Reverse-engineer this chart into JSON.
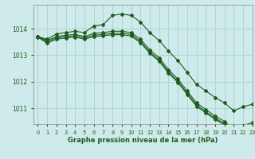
{
  "title": "Graphe pression niveau de la mer (hPa)",
  "background_color": "#ceeaea",
  "grid_color": "#aed4d4",
  "line_color": "#1e5c1e",
  "xlim": [
    -0.5,
    23
  ],
  "ylim": [
    1010.4,
    1014.9
  ],
  "yticks": [
    1011,
    1012,
    1013,
    1014
  ],
  "xticks": [
    0,
    1,
    2,
    3,
    4,
    5,
    6,
    7,
    8,
    9,
    10,
    11,
    12,
    13,
    14,
    15,
    16,
    17,
    18,
    19,
    20,
    21,
    22,
    23
  ],
  "series": [
    [
      1013.7,
      1013.6,
      1013.8,
      1013.85,
      1013.9,
      1013.85,
      1014.1,
      1014.15,
      1014.5,
      1014.55,
      1014.5,
      1014.25,
      1013.85,
      1013.55,
      1013.15,
      1012.8,
      1012.35,
      1011.9,
      1011.65,
      1011.4,
      1011.2,
      1010.9,
      1011.05,
      1011.15
    ],
    [
      1013.7,
      1013.55,
      1013.7,
      1013.75,
      1013.78,
      1013.7,
      1013.82,
      1013.85,
      1013.9,
      1013.9,
      1013.85,
      1013.6,
      1013.2,
      1012.9,
      1012.45,
      1012.1,
      1011.65,
      1011.2,
      1010.95,
      1010.7,
      1010.5,
      1010.2,
      1010.35,
      1010.45
    ],
    [
      1013.7,
      1013.5,
      1013.65,
      1013.7,
      1013.72,
      1013.65,
      1013.75,
      1013.78,
      1013.82,
      1013.82,
      1013.78,
      1013.52,
      1013.12,
      1012.82,
      1012.37,
      1012.02,
      1011.57,
      1011.12,
      1010.87,
      1010.62,
      1010.42,
      1010.12,
      1010.27,
      1010.37
    ],
    [
      1013.68,
      1013.45,
      1013.6,
      1013.65,
      1013.68,
      1013.6,
      1013.7,
      1013.73,
      1013.77,
      1013.77,
      1013.72,
      1013.47,
      1013.07,
      1012.77,
      1012.32,
      1011.97,
      1011.52,
      1011.07,
      1010.82,
      1010.57,
      1010.37,
      1010.07,
      1010.22,
      1010.32
    ]
  ]
}
